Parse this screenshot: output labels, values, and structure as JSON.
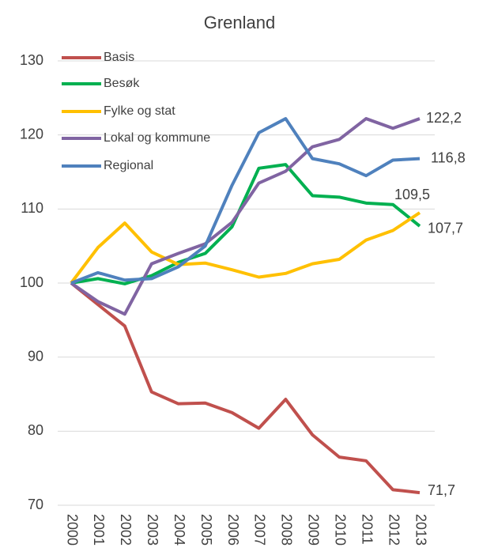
{
  "chart_data": {
    "type": "line",
    "title": "Grenland",
    "categories": [
      "2000",
      "2001",
      "2002",
      "2003",
      "2004",
      "2005",
      "2006",
      "2007",
      "2008",
      "2009",
      "2010",
      "2011",
      "2012",
      "2013"
    ],
    "ylim": [
      70,
      130
    ],
    "yticks": [
      70,
      80,
      90,
      100,
      110,
      120,
      130
    ],
    "grid": true,
    "legend": "top-left",
    "series": [
      {
        "name": "Basis",
        "color": "#c0504d",
        "values": [
          100,
          97.1,
          94.2,
          85.3,
          83.7,
          83.8,
          82.5,
          80.4,
          84.3,
          79.5,
          76.5,
          76.0,
          72.1,
          71.7
        ],
        "value_labels": [
          null,
          null,
          null,
          null,
          null,
          null,
          null,
          null,
          null,
          null,
          null,
          null,
          null,
          "71,7"
        ]
      },
      {
        "name": "Besøk",
        "color": "#00b050",
        "values": [
          100,
          100.6,
          99.9,
          101.0,
          102.8,
          104.0,
          107.6,
          115.5,
          116.0,
          111.8,
          111.6,
          110.8,
          110.6,
          107.7
        ],
        "value_labels": [
          null,
          null,
          null,
          null,
          null,
          null,
          null,
          null,
          null,
          null,
          null,
          null,
          null,
          "107,7"
        ]
      },
      {
        "name": "Fylke og stat",
        "color": "#ffc000",
        "values": [
          100,
          104.8,
          108.1,
          104.2,
          102.5,
          102.7,
          101.8,
          100.8,
          101.3,
          102.6,
          103.2,
          105.8,
          107.1,
          109.5
        ],
        "value_labels": [
          null,
          null,
          null,
          null,
          null,
          null,
          null,
          null,
          null,
          null,
          null,
          null,
          null,
          "109,5"
        ]
      },
      {
        "name": "Lokal og kommune",
        "color": "#8064a2",
        "values": [
          100,
          97.5,
          95.8,
          102.6,
          104.0,
          105.3,
          108.2,
          113.5,
          115.1,
          118.4,
          119.4,
          122.2,
          120.9,
          122.2
        ],
        "value_labels": [
          null,
          null,
          null,
          null,
          null,
          null,
          null,
          null,
          null,
          null,
          null,
          null,
          null,
          "122,2"
        ]
      },
      {
        "name": "Regional",
        "color": "#4f81bd",
        "values": [
          100,
          101.4,
          100.4,
          100.6,
          102.2,
          105.0,
          113.2,
          120.3,
          122.2,
          116.8,
          116.1,
          114.5,
          116.6,
          116.8
        ],
        "value_labels": [
          null,
          null,
          null,
          null,
          null,
          null,
          null,
          null,
          null,
          null,
          null,
          null,
          null,
          "116,8"
        ]
      }
    ]
  }
}
